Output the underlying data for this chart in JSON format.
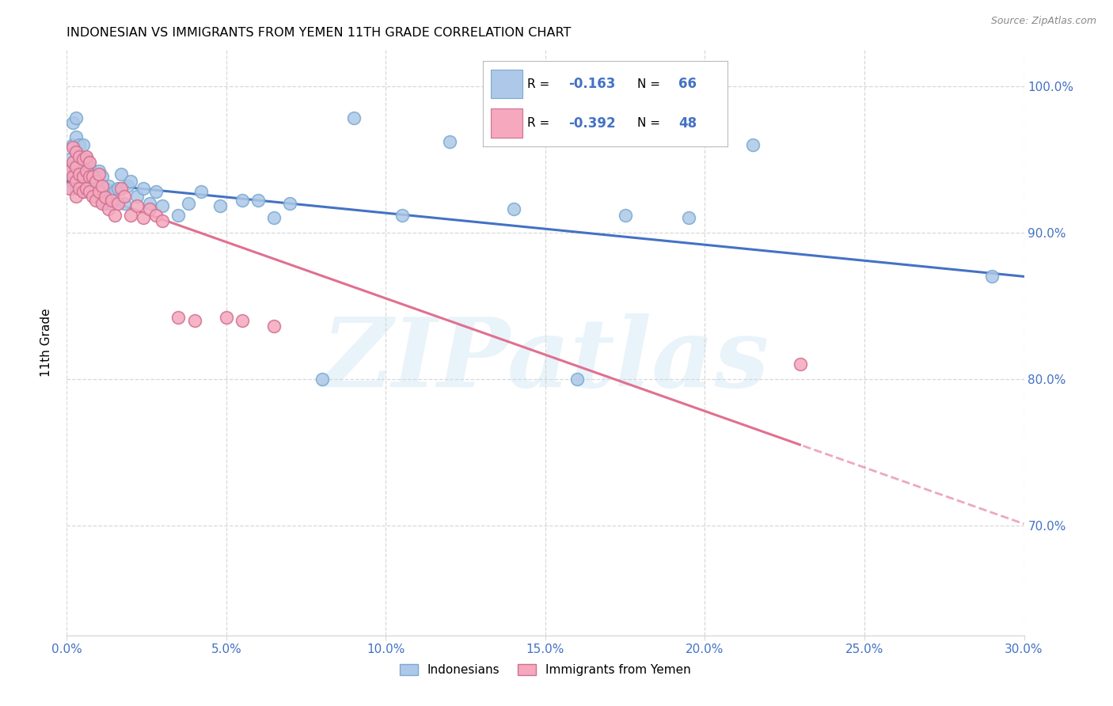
{
  "title": "INDONESIAN VS IMMIGRANTS FROM YEMEN 11TH GRADE CORRELATION CHART",
  "source": "Source: ZipAtlas.com",
  "ylabel_label": "11th Grade",
  "xlim": [
    0.0,
    0.3
  ],
  "ylim": [
    0.625,
    1.025
  ],
  "watermark": "ZIPatlas",
  "blue_legend_label": "Indonesians",
  "pink_legend_label": "Immigrants from Yemen",
  "blue_R": "-0.163",
  "blue_N": "66",
  "pink_R": "-0.392",
  "pink_N": "48",
  "blue_color": "#adc8e8",
  "pink_color": "#f5a8be",
  "blue_line_color": "#4472c4",
  "pink_line_color": "#e07090",
  "blue_edge_color": "#7aaad0",
  "pink_edge_color": "#d07090",
  "blue_x": [
    0.001,
    0.001,
    0.002,
    0.002,
    0.002,
    0.002,
    0.003,
    0.003,
    0.003,
    0.003,
    0.003,
    0.003,
    0.004,
    0.004,
    0.004,
    0.004,
    0.005,
    0.005,
    0.005,
    0.005,
    0.006,
    0.006,
    0.006,
    0.007,
    0.007,
    0.008,
    0.008,
    0.009,
    0.009,
    0.01,
    0.01,
    0.011,
    0.011,
    0.012,
    0.012,
    0.013,
    0.014,
    0.015,
    0.016,
    0.017,
    0.018,
    0.019,
    0.02,
    0.022,
    0.024,
    0.026,
    0.028,
    0.03,
    0.035,
    0.038,
    0.042,
    0.048,
    0.055,
    0.06,
    0.065,
    0.07,
    0.08,
    0.09,
    0.105,
    0.12,
    0.14,
    0.16,
    0.175,
    0.195,
    0.215,
    0.29
  ],
  "blue_y": [
    0.94,
    0.95,
    0.93,
    0.945,
    0.96,
    0.975,
    0.932,
    0.938,
    0.945,
    0.955,
    0.965,
    0.978,
    0.932,
    0.94,
    0.952,
    0.96,
    0.928,
    0.938,
    0.948,
    0.96,
    0.93,
    0.94,
    0.95,
    0.935,
    0.945,
    0.928,
    0.94,
    0.925,
    0.938,
    0.93,
    0.942,
    0.928,
    0.938,
    0.92,
    0.93,
    0.932,
    0.92,
    0.928,
    0.93,
    0.94,
    0.92,
    0.932,
    0.935,
    0.925,
    0.93,
    0.92,
    0.928,
    0.918,
    0.912,
    0.92,
    0.928,
    0.918,
    0.922,
    0.922,
    0.91,
    0.92,
    0.8,
    0.978,
    0.912,
    0.962,
    0.916,
    0.8,
    0.912,
    0.91,
    0.96,
    0.87
  ],
  "pink_x": [
    0.001,
    0.001,
    0.002,
    0.002,
    0.002,
    0.003,
    0.003,
    0.003,
    0.003,
    0.004,
    0.004,
    0.004,
    0.005,
    0.005,
    0.005,
    0.006,
    0.006,
    0.006,
    0.007,
    0.007,
    0.007,
    0.008,
    0.008,
    0.009,
    0.009,
    0.01,
    0.01,
    0.011,
    0.011,
    0.012,
    0.013,
    0.014,
    0.015,
    0.016,
    0.017,
    0.018,
    0.02,
    0.022,
    0.024,
    0.026,
    0.028,
    0.03,
    0.035,
    0.04,
    0.05,
    0.055,
    0.065,
    0.23
  ],
  "pink_y": [
    0.93,
    0.942,
    0.938,
    0.948,
    0.958,
    0.925,
    0.935,
    0.945,
    0.955,
    0.93,
    0.94,
    0.952,
    0.928,
    0.938,
    0.95,
    0.93,
    0.942,
    0.952,
    0.928,
    0.938,
    0.948,
    0.925,
    0.938,
    0.922,
    0.935,
    0.928,
    0.94,
    0.92,
    0.932,
    0.924,
    0.916,
    0.922,
    0.912,
    0.92,
    0.93,
    0.925,
    0.912,
    0.918,
    0.91,
    0.916,
    0.912,
    0.908,
    0.842,
    0.84,
    0.842,
    0.84,
    0.836,
    0.81
  ],
  "grid_color": "#d8d8d8",
  "background_color": "#ffffff",
  "title_fontsize": 11.5,
  "tick_label_color": "#4472c4"
}
